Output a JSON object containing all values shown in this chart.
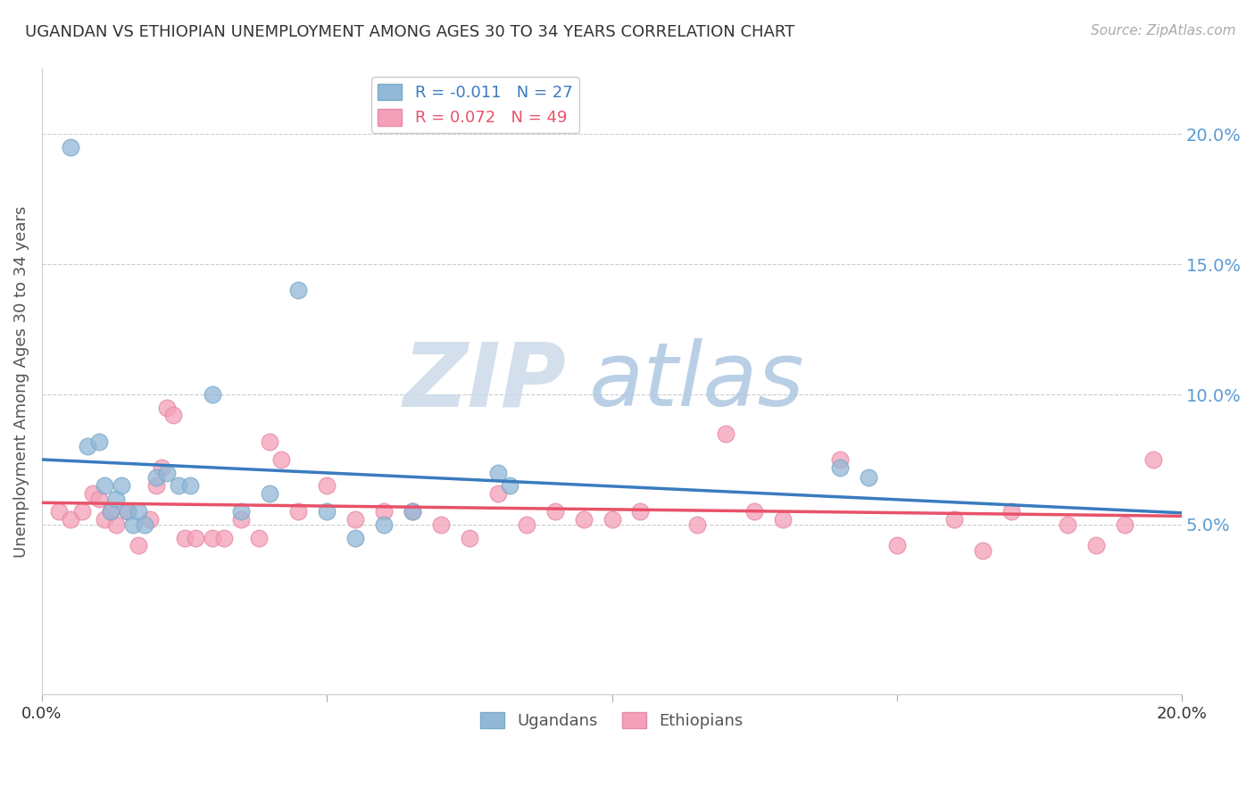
{
  "title": "UGANDAN VS ETHIOPIAN UNEMPLOYMENT AMONG AGES 30 TO 34 YEARS CORRELATION CHART",
  "source": "Source: ZipAtlas.com",
  "ylabel": "Unemployment Among Ages 30 to 34 years",
  "xlim": [
    0.0,
    20.0
  ],
  "ylim": [
    -1.5,
    22.5
  ],
  "yticks": [
    5.0,
    10.0,
    15.0,
    20.0
  ],
  "ytick_labels": [
    "5.0%",
    "10.0%",
    "15.0%",
    "20.0%"
  ],
  "xticks": [
    0.0,
    5.0,
    10.0,
    15.0,
    20.0
  ],
  "xtick_labels": [
    "0.0%",
    "",
    "",
    "",
    "20.0%"
  ],
  "legend_r1": "R = -0.011",
  "legend_n1": "N = 27",
  "legend_r2": "R = 0.072",
  "legend_n2": "N = 49",
  "ugandan_color": "#92b8d8",
  "ethiopian_color": "#f4a0b8",
  "ugandan_edge_color": "#7aaac8",
  "ethiopian_edge_color": "#e888a8",
  "ugandan_line_color": "#3a7bbf",
  "ethiopian_line_color": "#e8526a",
  "watermark_zip": "ZIP",
  "watermark_atlas": "atlas",
  "watermark_zip_color": "#c8d8e8",
  "watermark_atlas_color": "#a8c4e0",
  "ugandan_x": [
    0.5,
    0.8,
    1.0,
    1.1,
    1.2,
    1.3,
    1.4,
    1.5,
    1.6,
    1.7,
    1.8,
    2.0,
    2.2,
    2.4,
    2.6,
    3.0,
    3.5,
    4.0,
    4.5,
    5.0,
    5.5,
    6.0,
    6.5,
    8.0,
    8.2,
    14.0,
    14.5
  ],
  "ugandan_y": [
    19.5,
    8.0,
    8.2,
    6.5,
    5.5,
    6.0,
    6.5,
    5.5,
    5.0,
    5.5,
    5.0,
    6.8,
    7.0,
    6.5,
    6.5,
    10.0,
    5.5,
    6.2,
    14.0,
    5.5,
    4.5,
    5.0,
    5.5,
    7.0,
    6.5,
    7.2,
    6.8
  ],
  "ethiopian_x": [
    0.3,
    0.5,
    0.7,
    0.9,
    1.0,
    1.1,
    1.2,
    1.3,
    1.5,
    1.7,
    1.9,
    2.0,
    2.1,
    2.2,
    2.3,
    2.5,
    2.7,
    3.0,
    3.2,
    3.5,
    3.8,
    4.0,
    4.2,
    4.5,
    5.0,
    5.5,
    6.0,
    6.5,
    7.0,
    7.5,
    8.0,
    8.5,
    9.0,
    9.5,
    10.0,
    10.5,
    11.5,
    12.0,
    12.5,
    13.0,
    14.0,
    15.0,
    16.0,
    16.5,
    17.0,
    18.0,
    18.5,
    19.0,
    19.5
  ],
  "ethiopian_y": [
    5.5,
    5.2,
    5.5,
    6.2,
    6.0,
    5.2,
    5.5,
    5.0,
    5.5,
    4.2,
    5.2,
    6.5,
    7.2,
    9.5,
    9.2,
    4.5,
    4.5,
    4.5,
    4.5,
    5.2,
    4.5,
    8.2,
    7.5,
    5.5,
    6.5,
    5.2,
    5.5,
    5.5,
    5.0,
    4.5,
    6.2,
    5.0,
    5.5,
    5.2,
    5.2,
    5.5,
    5.0,
    8.5,
    5.5,
    5.2,
    7.5,
    4.2,
    5.2,
    4.0,
    5.5,
    5.0,
    4.2,
    5.0,
    7.5
  ]
}
